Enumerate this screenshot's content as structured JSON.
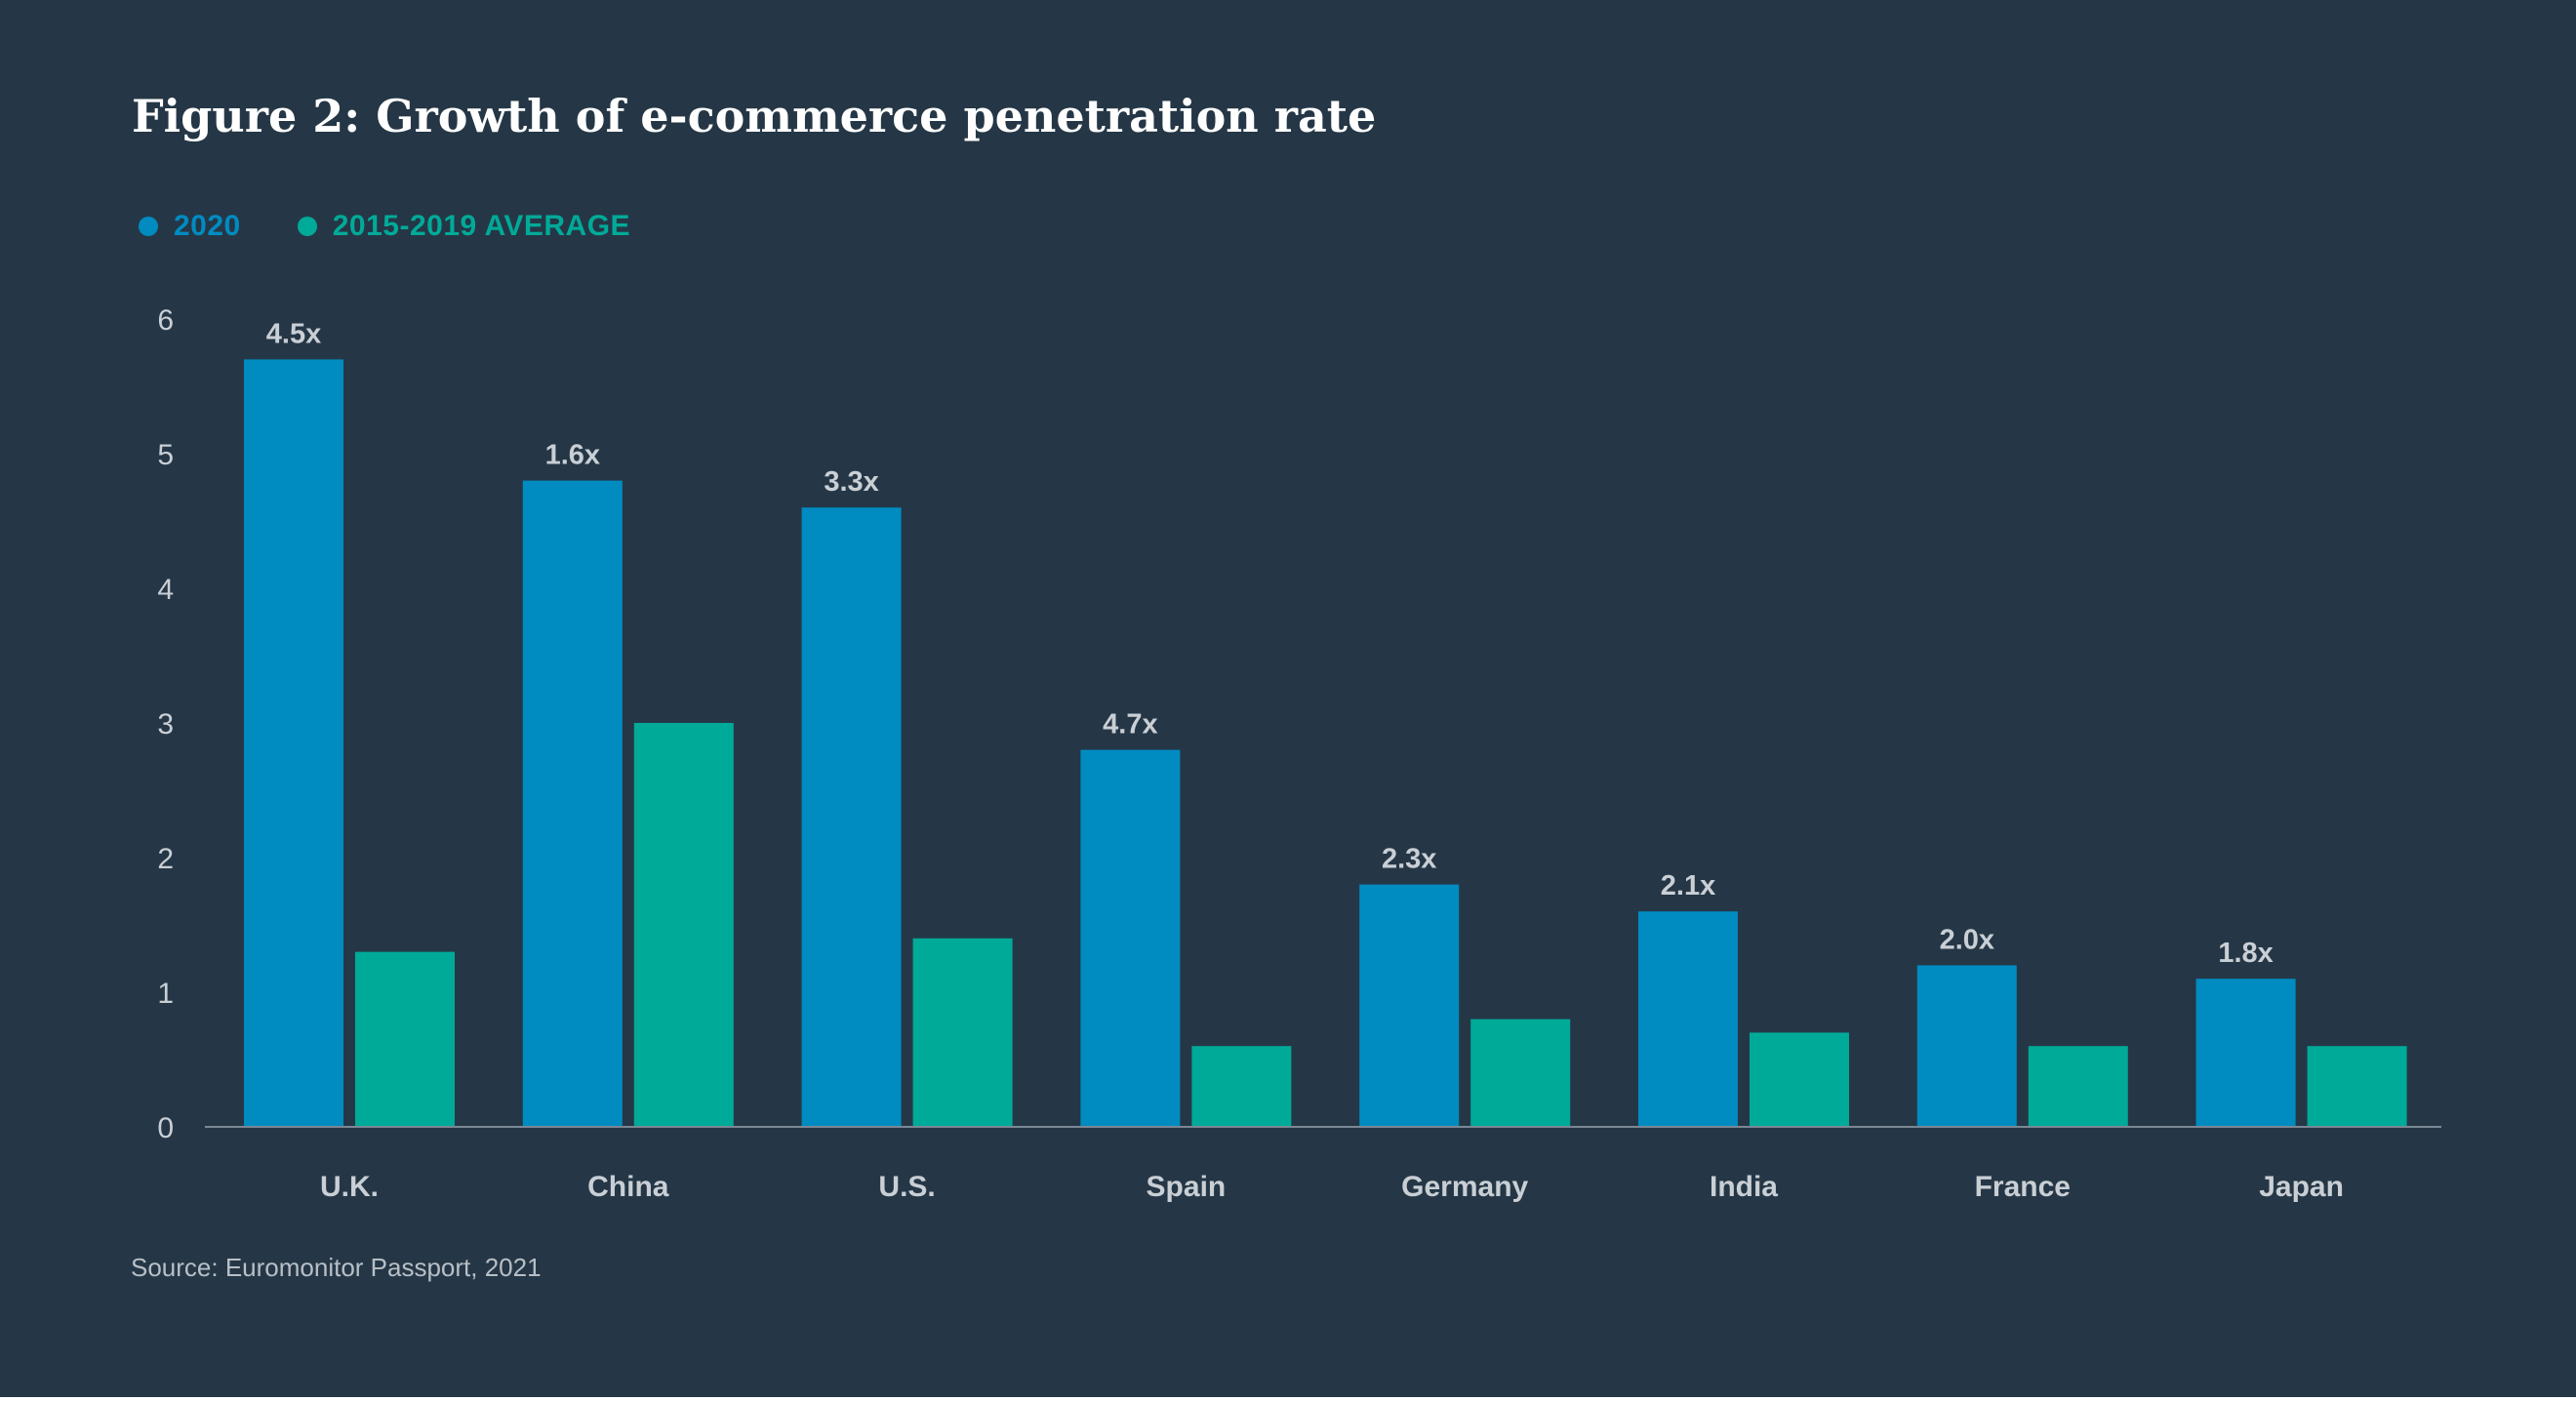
{
  "colors": {
    "background": "#253746",
    "series_2020": "#008bc1",
    "series_average": "#00aa98",
    "text": "#ffffff",
    "axis_text": "#c9cfd5",
    "axis_line": "#7a8794"
  },
  "chart_data": {
    "type": "bar",
    "title": "Figure 2: Growth of e-commerce penetration rate",
    "xlabel": "",
    "ylabel": "",
    "ylim": [
      0,
      6
    ],
    "yticks": [
      "0",
      "1",
      "2",
      "3",
      "4",
      "5",
      "6"
    ],
    "grid": false,
    "legend_position": "top-left",
    "categories": [
      "U.K.",
      "China",
      "U.S.",
      "Spain",
      "Germany",
      "India",
      "France",
      "Japan"
    ],
    "series": [
      {
        "name": "2020",
        "values": [
          5.7,
          4.8,
          4.6,
          2.8,
          1.8,
          1.6,
          1.2,
          1.1
        ],
        "labels": [
          "4.5x",
          "1.6x",
          "3.3x",
          "4.7x",
          "2.3x",
          "2.1x",
          "2.0x",
          "1.8x"
        ]
      },
      {
        "name": "2015-2019 AVERAGE",
        "values": [
          1.3,
          3.0,
          1.4,
          0.6,
          0.8,
          0.7,
          0.6,
          0.6
        ]
      }
    ],
    "source": "Source: Euromonitor Passport, 2021"
  }
}
